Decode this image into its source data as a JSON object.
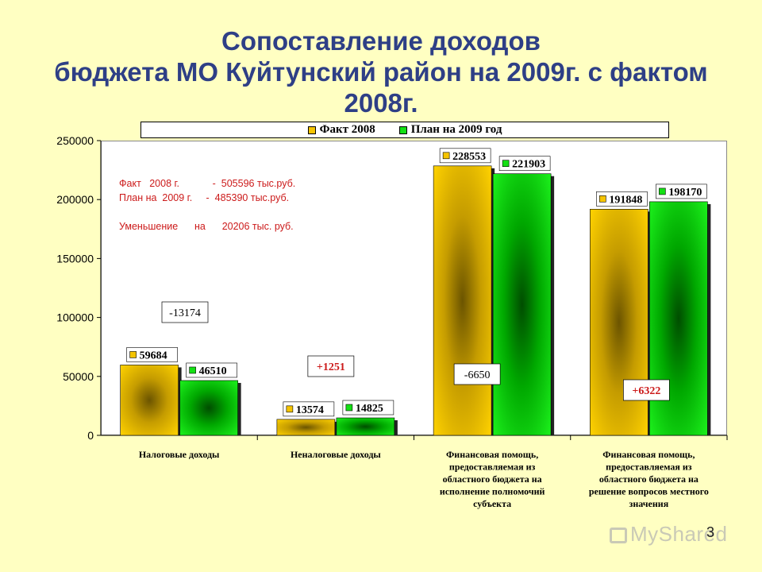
{
  "page": {
    "title_lines": [
      "Сопоставление доходов",
      "бюджета МО Куйтунский район на 2009г. с фактом",
      "2008г."
    ],
    "note": {
      "line1": "Факт   2008 г.            -  505596 тыс.руб.",
      "line2": "План на  2009 г.     -  485390 тыс.руб.",
      "line3": "Уменьшение      на      20206 тыс. руб."
    },
    "page_number": "3",
    "watermark": "MyShared"
  },
  "colors": {
    "background": "#ffffc2",
    "title": "#2e3f86",
    "fact": "#f5c400",
    "plan": "#14e014",
    "note": "#cc1a1a",
    "positive_diff": "#cc1a1a",
    "negative_diff": "#000000"
  },
  "chart_data": {
    "type": "bar",
    "title": "",
    "xlabel": "",
    "ylabel": "",
    "ylim": [
      0,
      250000
    ],
    "yticks": [
      0,
      50000,
      100000,
      150000,
      200000,
      250000
    ],
    "legend_position": "top",
    "categories": [
      "Налоговые доходы",
      "Неналоговые доходы",
      "Финансовая помощь, предоставляемая из областного бюджета на исполнение полномочий субъекта",
      "Финансовая помощь, предоставляемая из областного бюджета на решение вопросов местного значения"
    ],
    "series": [
      {
        "name": "Факт 2008",
        "values": [
          59684,
          13574,
          228553,
          191848
        ]
      },
      {
        "name": "План на  2009 год",
        "values": [
          46510,
          14825,
          221903,
          198170
        ]
      }
    ],
    "differences": [
      "-13174",
      "+1251",
      "-6650",
      "+6322"
    ]
  }
}
